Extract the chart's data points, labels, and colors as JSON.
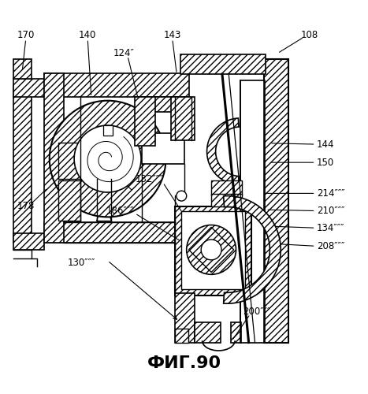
{
  "title": "ФИГ.90",
  "title_fontsize": 16,
  "title_bold": true,
  "background_color": "#ffffff",
  "line_color": "#000000",
  "fig_width": 4.67,
  "fig_height": 5.0,
  "dpi": 100
}
